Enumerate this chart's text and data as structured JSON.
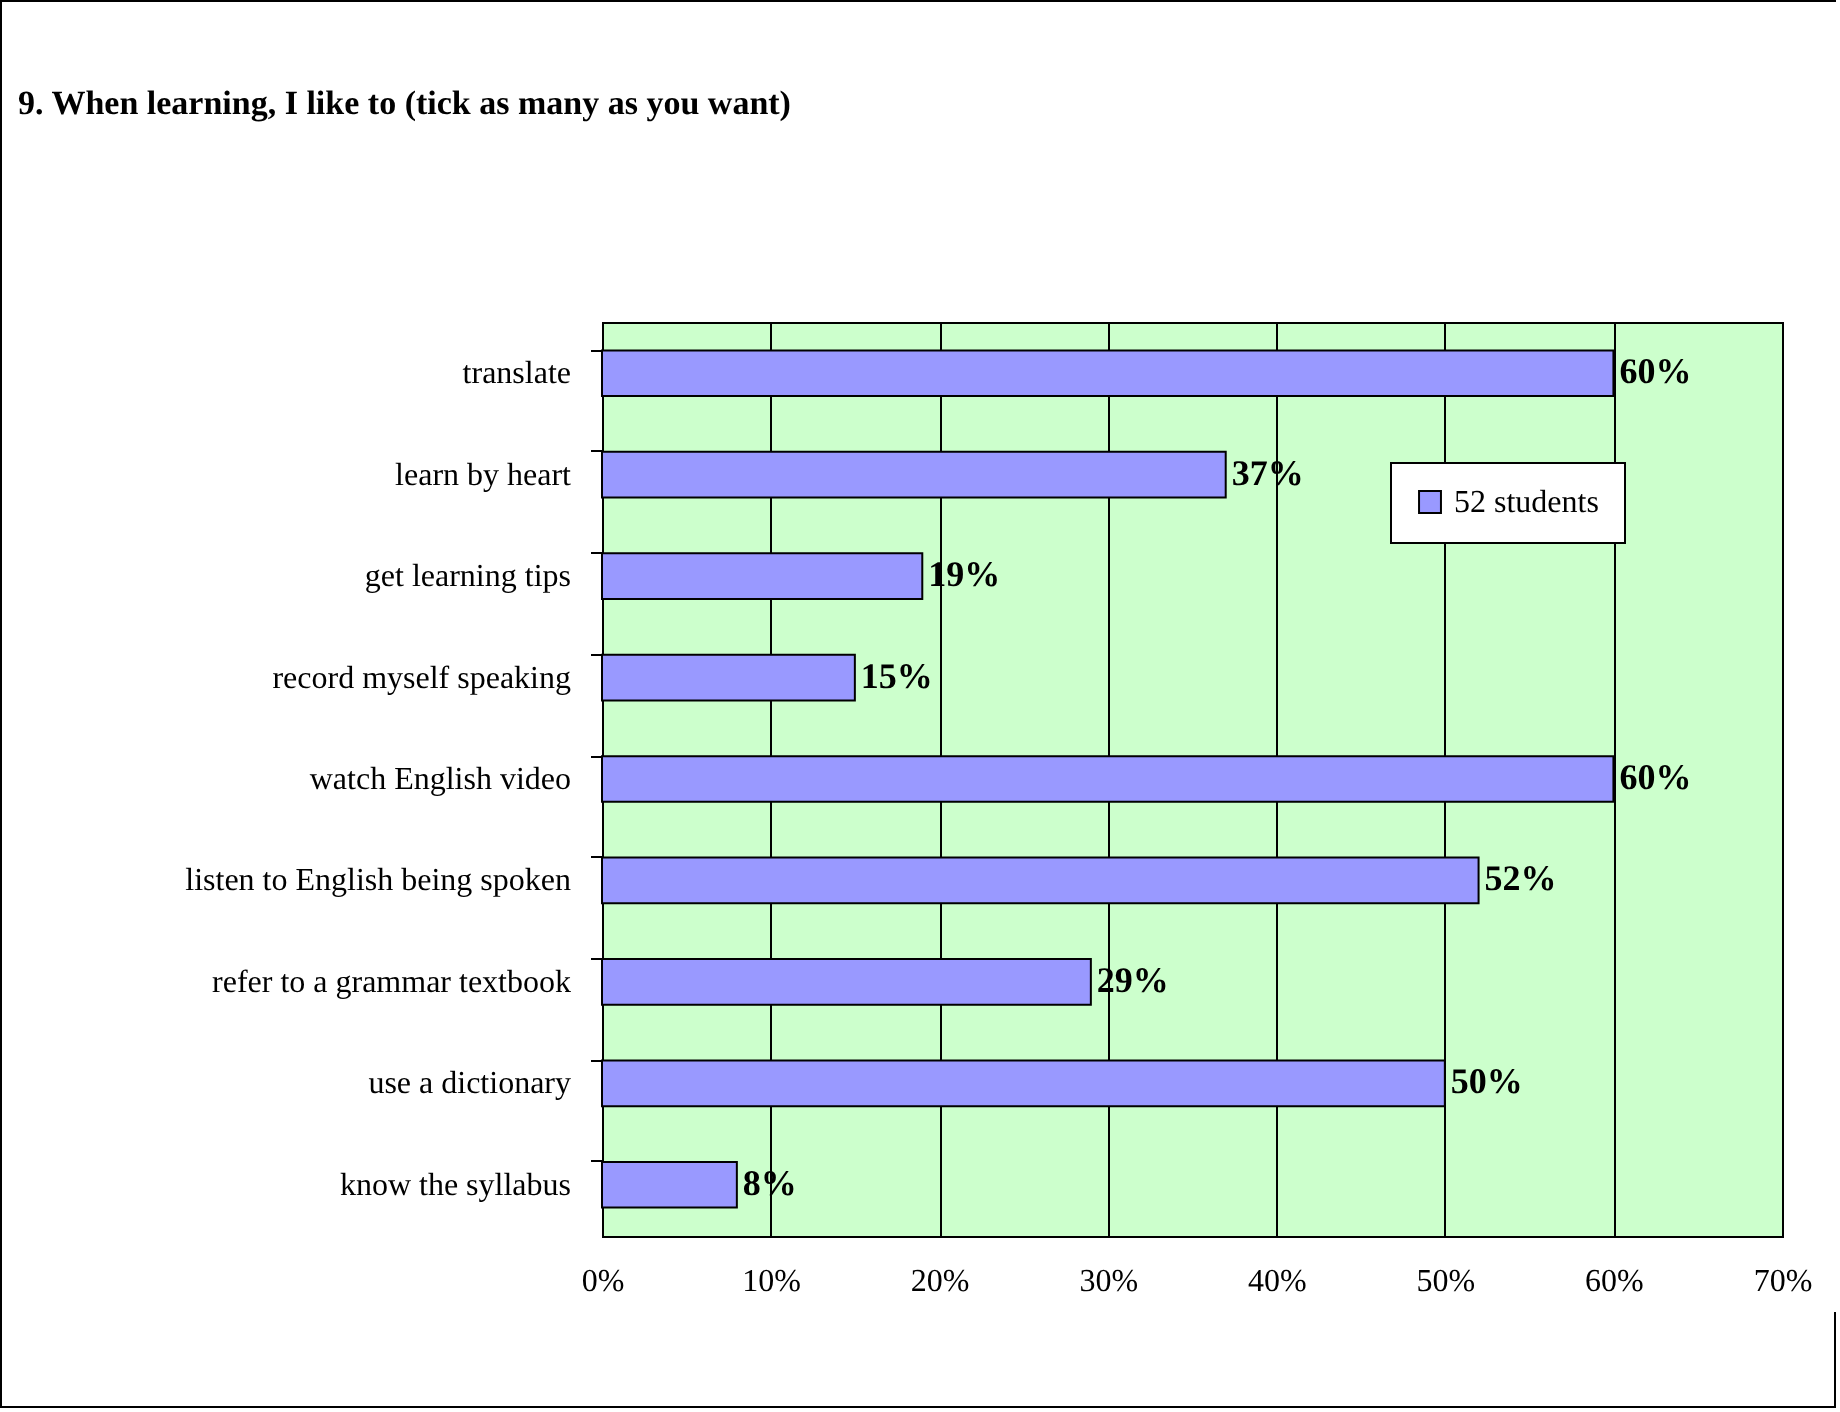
{
  "chart_data": {
    "type": "bar",
    "orientation": "horizontal",
    "title": "9. When learning, I like to (tick as many as you want)",
    "categories": [
      "translate",
      "learn by heart ",
      "get learning tips",
      "record myself speaking",
      "watch English video",
      "listen to English being spoken",
      "refer to a grammar textbook",
      "use a dictionary",
      "know the syllabus"
    ],
    "series": [
      {
        "name": "52 students",
        "color": "#9999ff",
        "values": [
          60,
          37,
          19,
          15,
          60,
          52,
          29,
          50,
          8
        ],
        "value_labels": [
          "60%",
          "37%",
          "19%",
          "15%",
          "60%",
          "52%",
          "29%",
          "50%",
          "8%"
        ]
      }
    ],
    "xlim": [
      0,
      70
    ],
    "xticks": [
      {
        "value": 0,
        "label": "0%"
      },
      {
        "value": 10,
        "label": "10%"
      },
      {
        "value": 20,
        "label": "20%"
      },
      {
        "value": 30,
        "label": "30%"
      },
      {
        "value": 40,
        "label": "40%"
      },
      {
        "value": 50,
        "label": "50%"
      },
      {
        "value": 60,
        "label": "60%"
      },
      {
        "value": 70,
        "label": "70%"
      }
    ],
    "grid": "x",
    "legend": "top right"
  }
}
